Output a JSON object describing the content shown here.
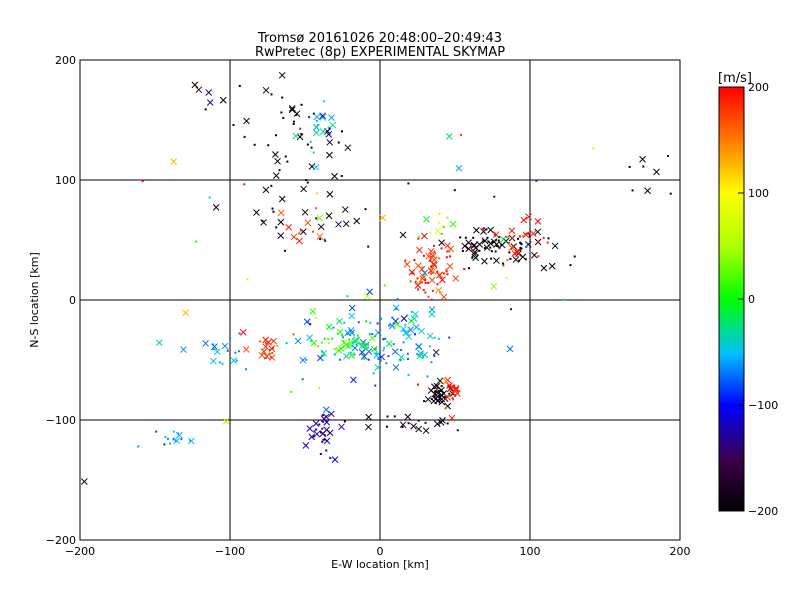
{
  "chart_data": {
    "type": "scatter",
    "title": "Tromsø 20161026 20:48:00–20:49:43",
    "subtitle": "RwPretec (8p) EXPERIMENTAL SKYMAP",
    "xlabel": "E-W location [km]",
    "ylabel": "N-S location [km]",
    "xlim": [
      -200,
      200
    ],
    "ylim": [
      -200,
      200
    ],
    "xticks": [
      -200,
      -100,
      0,
      100,
      200
    ],
    "yticks": [
      -200,
      -100,
      0,
      100,
      200
    ],
    "xtick_labels": [
      "−200",
      "−100",
      "0",
      "100",
      "200"
    ],
    "ytick_labels": [
      "−200",
      "−100",
      "0",
      "100",
      "200"
    ],
    "grid_lines": [
      -100,
      0,
      100
    ],
    "colorbar": {
      "label": "[m/s]",
      "range": [
        -200,
        200
      ],
      "ticks": [
        200,
        100,
        0,
        -100,
        -200
      ],
      "tick_labels": [
        "200",
        "100",
        "0",
        "−100",
        "−200"
      ]
    },
    "clusters": [
      {
        "name": "ne-red",
        "x": 35,
        "y": 25,
        "sx": 8,
        "sy": 12,
        "n": 70,
        "v": 185,
        "vs": 20
      },
      {
        "name": "ne-black",
        "x": 78,
        "y": 45,
        "sx": 18,
        "sy": 8,
        "n": 80,
        "v": -195,
        "vs": 10
      },
      {
        "name": "ne-red-east",
        "x": 92,
        "y": 48,
        "sx": 14,
        "sy": 8,
        "n": 30,
        "v": 185,
        "vs": 15
      },
      {
        "name": "ne-green",
        "x": 38,
        "y": 62,
        "sx": 6,
        "sy": 5,
        "n": 12,
        "v": 40,
        "vs": 30
      },
      {
        "name": "center-cyan",
        "x": -5,
        "y": -35,
        "sx": 28,
        "sy": 15,
        "n": 120,
        "v": -60,
        "vs": 20
      },
      {
        "name": "center-green",
        "x": -25,
        "y": -35,
        "sx": 15,
        "sy": 10,
        "n": 40,
        "v": 10,
        "vs": 25
      },
      {
        "name": "se-black",
        "x": 40,
        "y": -78,
        "sx": 5,
        "sy": 5,
        "n": 35,
        "v": -195,
        "vs": 8
      },
      {
        "name": "se-red",
        "x": 48,
        "y": -78,
        "sx": 3,
        "sy": 7,
        "n": 18,
        "v": 185,
        "vs": 15
      },
      {
        "name": "s-blue",
        "x": -38,
        "y": -108,
        "sx": 6,
        "sy": 9,
        "n": 30,
        "v": -120,
        "vs": 15
      },
      {
        "name": "n-black",
        "x": -60,
        "y": 140,
        "sx": 20,
        "sy": 20,
        "n": 40,
        "v": -195,
        "vs": 8
      },
      {
        "name": "n-cyan",
        "x": -40,
        "y": 140,
        "sx": 8,
        "sy": 12,
        "n": 20,
        "v": -50,
        "vs": 35
      },
      {
        "name": "nw-purple",
        "x": -115,
        "y": 175,
        "sx": 8,
        "sy": 5,
        "n": 5,
        "v": -160,
        "vs": 20
      },
      {
        "name": "mid-black",
        "x": -50,
        "y": 70,
        "sx": 25,
        "sy": 20,
        "n": 30,
        "v": -190,
        "vs": 10
      },
      {
        "name": "mid-red",
        "x": -50,
        "y": 55,
        "sx": 10,
        "sy": 10,
        "n": 10,
        "v": 180,
        "vs": 15
      },
      {
        "name": "w-cyan",
        "x": -110,
        "y": -45,
        "sx": 10,
        "sy": 8,
        "n": 18,
        "v": -60,
        "vs": 10
      },
      {
        "name": "w-red",
        "x": -75,
        "y": -40,
        "sx": 7,
        "sy": 6,
        "n": 22,
        "v": 180,
        "vs": 15
      },
      {
        "name": "sw-cyan",
        "x": -135,
        "y": -118,
        "sx": 10,
        "sy": 5,
        "n": 15,
        "v": -60,
        "vs": 20
      },
      {
        "name": "far-east",
        "x": 180,
        "y": 105,
        "sx": 10,
        "sy": 10,
        "n": 8,
        "v": -190,
        "vs": 8
      },
      {
        "name": "s-black",
        "x": 20,
        "y": -103,
        "sx": 20,
        "sy": 4,
        "n": 20,
        "v": -190,
        "vs": 10
      },
      {
        "name": "scatter-mixed",
        "x": 0,
        "y": 20,
        "sx": 90,
        "sy": 80,
        "n": 40,
        "v": 0,
        "vs": 120
      }
    ]
  }
}
